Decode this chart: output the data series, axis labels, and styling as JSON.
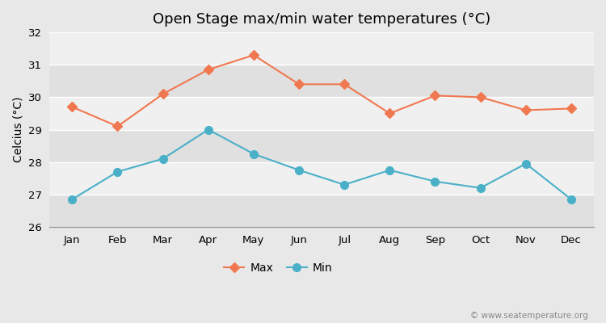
{
  "title": "Open Stage max/min water temperatures (°C)",
  "ylabel": "Celcius (°C)",
  "months": [
    "Jan",
    "Feb",
    "Mar",
    "Apr",
    "May",
    "Jun",
    "Jul",
    "Aug",
    "Sep",
    "Oct",
    "Nov",
    "Dec"
  ],
  "max_values": [
    29.7,
    29.1,
    30.1,
    30.85,
    31.3,
    30.4,
    30.4,
    29.5,
    30.05,
    30.0,
    29.6,
    29.65
  ],
  "min_values": [
    26.85,
    27.7,
    28.1,
    29.0,
    28.25,
    27.75,
    27.3,
    27.75,
    27.4,
    27.2,
    27.95,
    26.85
  ],
  "max_color": "#f07850",
  "min_color": "#4ab0c8",
  "fig_bg_color": "#e8e8e8",
  "plot_bg_light": "#f0f0f0",
  "plot_bg_dark": "#e0e0e0",
  "grid_color": "#ffffff",
  "ylim": [
    26,
    32
  ],
  "yticks": [
    26,
    27,
    28,
    29,
    30,
    31,
    32
  ],
  "legend_labels": [
    "Max",
    "Min"
  ],
  "watermark": "© www.seatemperature.org",
  "title_fontsize": 13,
  "axis_fontsize": 10,
  "tick_fontsize": 9.5,
  "legend_fontsize": 10,
  "max_marker": "D",
  "min_marker": "o",
  "line_width": 1.5,
  "max_marker_size": 6,
  "min_marker_size": 7
}
